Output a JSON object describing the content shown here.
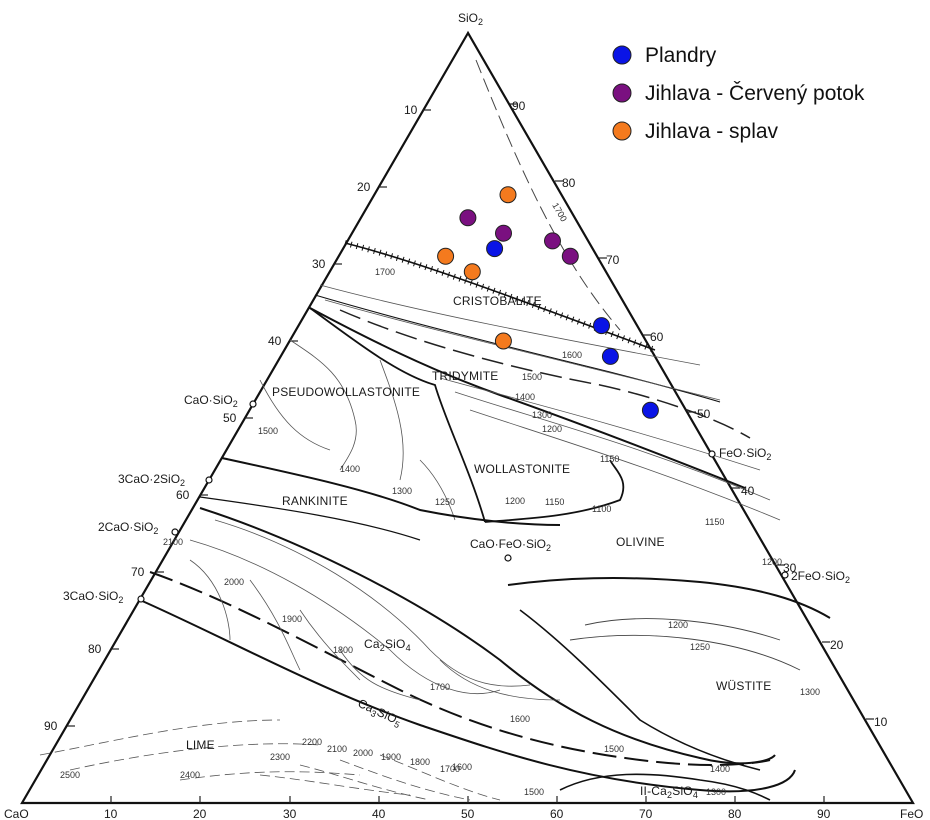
{
  "diagram": {
    "apex_top": "SiO",
    "apex_top_sub": "2",
    "apex_left": "CaO",
    "apex_right": "FeO",
    "right_ticks": [
      "10",
      "20",
      "30",
      "40",
      "50",
      "60",
      "70",
      "80",
      "90"
    ],
    "left_ticks": [
      "10",
      "20",
      "30",
      "40",
      "50",
      "60",
      "70",
      "80",
      "90"
    ],
    "bottom_ticks": [
      "10",
      "20",
      "30",
      "40",
      "50",
      "60",
      "70",
      "80",
      "90"
    ],
    "phases": {
      "cristobalite": "CRISTOBALITE",
      "tridymite": "TRIDYMITE",
      "pseudowollastonite": "PSEUDOWOLLASTONITE",
      "wollastonite": "WOLLASTONITE",
      "rankinite": "RANKINITE",
      "olivine": "OLIVINE",
      "wustite": "WÜSTITE",
      "lime": "LIME",
      "ca2sio4_a": "Ca",
      "ca2sio4_b": "2",
      "ca2sio4_c": "SiO",
      "ca2sio4_d": "4",
      "ca3sio5_a": "Ca",
      "ca3sio5_b": "3",
      "ca3sio5_c": "SiO",
      "ca3sio5_d": "5",
      "ca2sio4_low": "II-Ca",
      "ca2sio4_low_b": "2",
      "ca2sio4_low_c": "SiO",
      "ca2sio4_low_d": "4"
    },
    "compounds": {
      "cao_sio2": "CaO·SiO",
      "cao_sio2_sub": "2",
      "c3s2": "3CaO·2SiO",
      "c3s2_sub": "2",
      "c2s": "2CaO·SiO",
      "c2s_sub": "2",
      "c3s": "3CaO·SiO",
      "c3s_sub": "2",
      "feo_sio2": "FeO·SiO",
      "feo_sio2_sub": "2",
      "fe2s": "2FeO·SiO",
      "fe2s_sub": "2",
      "cfs": "CaO·FeO·SiO",
      "cfs_sub": "2"
    },
    "isotherms": {
      "t1700a": "1700",
      "t1700b": "1700",
      "t1600a": "1600",
      "t1500a": "1500",
      "t1400a": "1400",
      "t1300a": "1300",
      "t1200a": "1200",
      "t1150a": "1150",
      "t1500b": "1500",
      "t1400b": "1400",
      "t1300b": "1300",
      "t1250a": "1250",
      "t1200b": "1200",
      "t1150b": "1150",
      "t1100a": "1100",
      "t1150c": "1150",
      "t1200c": "1200",
      "t1200d": "1200",
      "t1250b": "1250",
      "t1300c": "1300",
      "t2100a": "2100",
      "t2000a": "2000",
      "t1900a": "1900",
      "t1800a": "1800",
      "t1700c": "1700",
      "t1600b": "1600",
      "t1500c": "1500",
      "t2500": "2500",
      "t2400": "2400",
      "t2300": "2300",
      "t2200": "2200",
      "t2100b": "2100",
      "t2000b": "2000",
      "t1900b": "1900",
      "t1800b": "1800",
      "t1700d": "1700",
      "t1600c": "1600",
      "t1500d": "1500",
      "t1400c": "1400",
      "t1300d": "1300"
    }
  },
  "legend": [
    {
      "label": "Plandry",
      "color": "#0a14e6"
    },
    {
      "label": "Jihlava - Červený potok",
      "color": "#7a1080"
    },
    {
      "label": "Jihlava - splav",
      "color": "#f47a1e"
    }
  ],
  "chart_data": {
    "type": "scatter",
    "axes": [
      "SiO2",
      "CaO",
      "FeO"
    ],
    "series": [
      {
        "name": "Plandry",
        "points": [
          {
            "SiO2": 72,
            "FeO": 17,
            "CaO": 11
          },
          {
            "SiO2": 62,
            "FeO": 34,
            "CaO": 4
          },
          {
            "SiO2": 58,
            "FeO": 37,
            "CaO": 5
          },
          {
            "SiO2": 51,
            "FeO": 45,
            "CaO": 4
          }
        ]
      },
      {
        "name": "Jihlava - Červený potok",
        "points": [
          {
            "SiO2": 76,
            "FeO": 12,
            "CaO": 12
          },
          {
            "SiO2": 74,
            "FeO": 17,
            "CaO": 9
          },
          {
            "SiO2": 73,
            "FeO": 23,
            "CaO": 4
          },
          {
            "SiO2": 71,
            "FeO": 26,
            "CaO": 3
          }
        ]
      },
      {
        "name": "Jihlava - splav",
        "points": [
          {
            "SiO2": 79,
            "FeO": 15,
            "CaO": 6
          },
          {
            "SiO2": 71,
            "FeO": 12,
            "CaO": 17
          },
          {
            "SiO2": 69,
            "FeO": 16,
            "CaO": 15
          },
          {
            "SiO2": 60,
            "FeO": 24,
            "CaO": 16
          }
        ]
      }
    ]
  }
}
